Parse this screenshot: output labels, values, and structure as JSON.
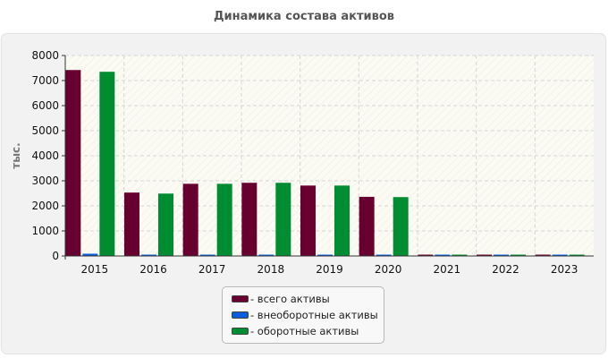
{
  "colors": {
    "total": "#67002e",
    "noncurrent": "#0a5edb",
    "current": "#008c31"
  },
  "chart_data": {
    "type": "bar",
    "title": "Динамика состава активов",
    "ylabel": "тыс.",
    "xlabel": "",
    "categories": [
      "2015",
      "2016",
      "2017",
      "2018",
      "2019",
      "2020",
      "2021",
      "2022",
      "2023"
    ],
    "ylim": [
      0,
      8000
    ],
    "yticks": [
      "0",
      "1000",
      "2000",
      "3000",
      "4000",
      "5000",
      "6000",
      "7000",
      "8000"
    ],
    "grid": true,
    "legend_position": "bottom-center",
    "series": [
      {
        "name": "- всего активы",
        "color_key": "total",
        "values": [
          7420,
          2530,
          2880,
          2920,
          2810,
          2360,
          30,
          30,
          30
        ]
      },
      {
        "name": "- внеоборотные активы",
        "color_key": "noncurrent",
        "values": [
          90,
          40,
          40,
          40,
          40,
          40,
          30,
          30,
          30
        ]
      },
      {
        "name": "- оборотные активы",
        "color_key": "current",
        "values": [
          7350,
          2490,
          2880,
          2920,
          2810,
          2350,
          30,
          30,
          30
        ]
      }
    ]
  }
}
